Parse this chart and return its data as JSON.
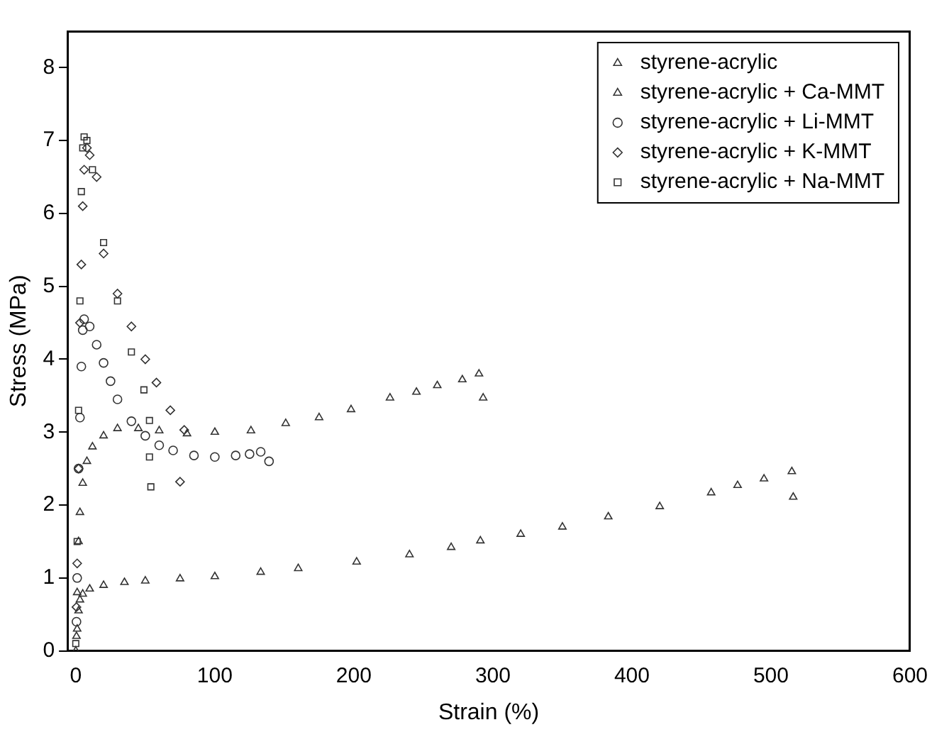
{
  "chart_data": {
    "type": "scatter",
    "xlabel": "Strain (%)",
    "ylabel": "Stress (MPa)",
    "xlim": [
      -6,
      600
    ],
    "ylim": [
      0,
      8.5
    ],
    "xticks": [
      0,
      100,
      200,
      300,
      400,
      500,
      600
    ],
    "yticks": [
      0,
      1,
      2,
      3,
      4,
      5,
      6,
      7,
      8
    ],
    "grid": false,
    "legend": "top right",
    "series": [
      {
        "name": "styrene-acrylic",
        "color": "#333333",
        "marker": "triangle",
        "x": [
          0,
          1,
          2,
          3,
          5,
          10,
          20,
          35,
          50,
          75,
          100,
          133,
          160,
          202,
          240,
          270,
          291,
          320,
          350,
          383,
          420,
          457,
          476,
          495,
          515,
          516
        ],
        "values": [
          0,
          0.3,
          0.55,
          0.7,
          0.78,
          0.85,
          0.9,
          0.94,
          0.96,
          0.99,
          1.02,
          1.08,
          1.13,
          1.22,
          1.32,
          1.42,
          1.51,
          1.6,
          1.7,
          1.84,
          1.98,
          2.17,
          2.27,
          2.36,
          2.46,
          2.11
        ]
      },
      {
        "name": "styrene-acrylic + Ca-MMT",
        "color": "#333333",
        "marker": "triangle",
        "x": [
          0.5,
          1,
          2,
          3,
          5,
          8,
          12,
          20,
          30,
          45,
          60,
          80,
          100,
          126,
          151,
          175,
          198,
          226,
          245,
          260,
          278,
          290,
          293
        ],
        "values": [
          0.2,
          0.8,
          1.5,
          1.9,
          2.3,
          2.6,
          2.8,
          2.95,
          3.05,
          3.05,
          3.02,
          2.98,
          3.0,
          3.02,
          3.12,
          3.2,
          3.31,
          3.47,
          3.55,
          3.64,
          3.72,
          3.8,
          3.47
        ]
      },
      {
        "name": "styrene-acrylic + Li-MMT",
        "color": "#333333",
        "marker": "circle",
        "x": [
          0.5,
          1,
          2,
          3,
          4,
          5,
          6,
          10,
          15,
          20,
          25,
          30,
          40,
          50,
          60,
          70,
          85,
          100,
          115,
          125,
          133,
          139
        ],
        "values": [
          0.4,
          1.0,
          2.5,
          3.2,
          3.9,
          4.4,
          4.55,
          4.45,
          4.2,
          3.95,
          3.7,
          3.45,
          3.15,
          2.95,
          2.82,
          2.75,
          2.68,
          2.66,
          2.68,
          2.7,
          2.73,
          2.6
        ]
      },
      {
        "name": "styrene-acrylic + K-MMT",
        "color": "#333333",
        "marker": "diamond",
        "x": [
          0.5,
          1,
          2,
          3,
          4,
          5,
          6,
          8,
          10,
          15,
          20,
          30,
          40,
          50,
          58,
          68,
          78,
          75
        ],
        "values": [
          0.6,
          1.2,
          2.5,
          4.5,
          5.3,
          6.1,
          6.6,
          6.9,
          6.8,
          6.5,
          5.45,
          4.9,
          4.45,
          4.0,
          3.68,
          3.3,
          3.03,
          2.32
        ]
      },
      {
        "name": "styrene-acrylic + Na-MMT",
        "color": "#333333",
        "marker": "square",
        "x": [
          0,
          1,
          2,
          3,
          4,
          5,
          6,
          8,
          12,
          20,
          30,
          40,
          49,
          53,
          53,
          54
        ],
        "values": [
          0.1,
          1.5,
          3.3,
          4.8,
          6.3,
          6.9,
          7.05,
          7.0,
          6.6,
          5.6,
          4.8,
          4.1,
          3.58,
          3.16,
          2.66,
          2.25
        ]
      }
    ]
  }
}
